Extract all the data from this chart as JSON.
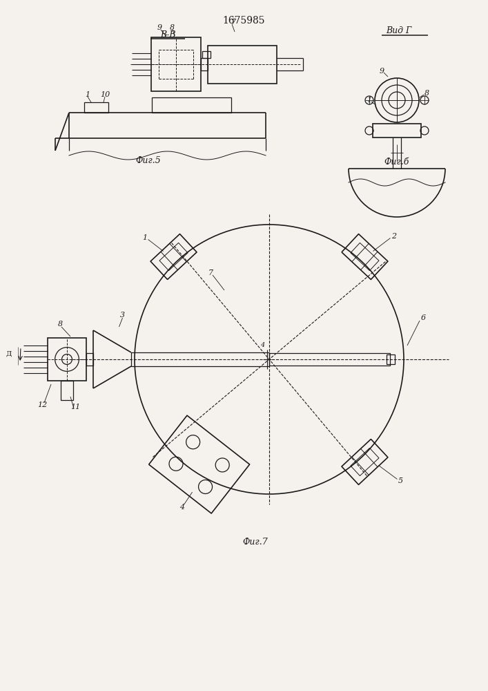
{
  "title": "1675985",
  "fig5_label": "Фиг.5",
  "fig6_label": "Фиг.б",
  "fig7_label": "Фиг.7",
  "section_label": "В-В",
  "view_label": "Вид Г",
  "bg_color": "#f5f2ee",
  "line_color": "#1a1a1a"
}
